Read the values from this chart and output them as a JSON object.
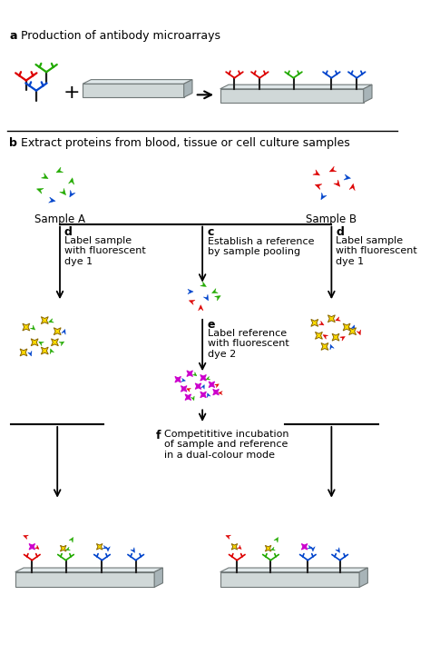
{
  "title_a": "Production of antibody microarrays",
  "title_b": "Extract proteins from blood, tissue or cell culture samples",
  "label_a": "a",
  "label_b": "b",
  "label_c": "c",
  "text_c": "Establish a reference\nby sample pooling",
  "label_d": "d",
  "text_d_left": "Label sample\nwith fluorescent\ndye 1",
  "text_d_right": "Label sample\nwith fluorescent\ndye 1",
  "label_e": "e",
  "text_e": "Label reference\nwith fluorescent\ndye 2",
  "label_f": "f",
  "text_f": "Competititive incubation\nof sample and reference\nin a dual-colour mode",
  "sample_a_label": "Sample A",
  "sample_b_label": "Sample B",
  "bg_color": "#ffffff",
  "line_color": "#000000",
  "slide_top_color": "#e0e8ea",
  "slide_face_color": "#d0d8d8",
  "slide_right_color": "#a8b4b8",
  "slide_edge_color": "#707878",
  "red": "#dd0000",
  "green": "#22aa00",
  "blue": "#0044cc",
  "yellow": "#ffdd00",
  "magenta": "#cc00cc",
  "cyan": "#00aacc"
}
